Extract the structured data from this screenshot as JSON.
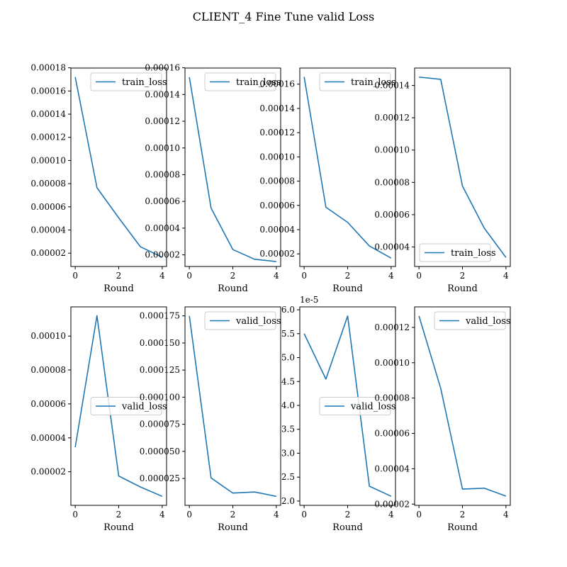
{
  "figure": {
    "title": "CLIENT_4 Fine Tune valid Loss",
    "line_color": "#1f77b4"
  },
  "chart_data": [
    {
      "type": "line",
      "title": "",
      "xlabel": "Round",
      "ylabel": "",
      "x": [
        0,
        1,
        2,
        3,
        4
      ],
      "series": [
        {
          "name": "train_loss",
          "values": [
            0.000172,
            7.65e-05,
            5.05e-05,
            2.55e-05,
            1.65e-05
          ]
        }
      ],
      "xlim": [
        -0.2,
        4.2
      ],
      "ylim": [
        8.5e-06,
        0.0001798
      ],
      "yticks": [
        2e-05,
        4e-05,
        6e-05,
        8e-05,
        0.0001,
        0.00012,
        0.00014,
        0.00016,
        0.00018
      ],
      "ytick_labels": [
        "0.00002",
        "0.00004",
        "0.00006",
        "0.00008",
        "0.00010",
        "0.00012",
        "0.00014",
        "0.00016",
        "0.00018"
      ],
      "xticks": [
        0,
        2,
        4
      ],
      "xtick_labels": [
        "0",
        "2",
        "4"
      ],
      "offset_label": "",
      "legend_loc": "upper right",
      "grid": false
    },
    {
      "type": "line",
      "title": "",
      "xlabel": "Round",
      "ylabel": "",
      "x": [
        0,
        1,
        2,
        3,
        4
      ],
      "series": [
        {
          "name": "train_loss",
          "values": [
            0.000153,
            5.5e-05,
            2.4e-05,
            1.67e-05,
            1.5e-05
          ]
        }
      ],
      "xlim": [
        -0.2,
        4.2
      ],
      "ylim": [
        1.13e-05,
        0.0001598
      ],
      "yticks": [
        2e-05,
        4e-05,
        6e-05,
        8e-05,
        0.0001,
        0.00012,
        0.00014,
        0.00016
      ],
      "ytick_labels": [
        "0.00002",
        "0.00004",
        "0.00006",
        "0.00008",
        "0.00010",
        "0.00012",
        "0.00014",
        "0.00016"
      ],
      "xticks": [
        0,
        2,
        4
      ],
      "xtick_labels": [
        "0",
        "2",
        "4"
      ],
      "offset_label": "",
      "legend_loc": "upper right",
      "grid": false
    },
    {
      "type": "line",
      "title": "",
      "xlabel": "Round",
      "ylabel": "",
      "x": [
        0,
        1,
        2,
        3,
        4
      ],
      "series": [
        {
          "name": "train_loss",
          "values": [
            0.000166,
            5.85e-05,
            4.6e-05,
            2.65e-05,
            1.65e-05
          ]
        }
      ],
      "xlim": [
        -0.2,
        4.2
      ],
      "ylim": [
        9.6e-06,
        0.0001733
      ],
      "yticks": [
        2e-05,
        4e-05,
        6e-05,
        8e-05,
        0.0001,
        0.00012,
        0.00014,
        0.00016
      ],
      "ytick_labels": [
        "0.00002",
        "0.00004",
        "0.00006",
        "0.00008",
        "0.00010",
        "0.00012",
        "0.00014",
        "0.00016"
      ],
      "xticks": [
        0,
        2,
        4
      ],
      "xtick_labels": [
        "0",
        "2",
        "4"
      ],
      "offset_label": "",
      "legend_loc": "upper right",
      "grid": false
    },
    {
      "type": "line",
      "title": "",
      "xlabel": "Round",
      "ylabel": "",
      "x": [
        0,
        1,
        2,
        3,
        4
      ],
      "series": [
        {
          "name": "train_loss",
          "values": [
            0.0001452,
            0.0001438,
            7.77e-05,
            5.17e-05,
            3.35e-05
          ]
        }
      ],
      "xlim": [
        -0.2,
        4.2
      ],
      "ylim": [
        2.79e-05,
        0.0001508
      ],
      "yticks": [
        4e-05,
        6e-05,
        8e-05,
        0.0001,
        0.00012,
        0.00014
      ],
      "ytick_labels": [
        "0.00004",
        "0.00006",
        "0.00008",
        "0.00010",
        "0.00012",
        "0.00014"
      ],
      "xticks": [
        0,
        2,
        4
      ],
      "xtick_labels": [
        "0",
        "2",
        "4"
      ],
      "offset_label": "",
      "legend_loc": "lower left",
      "grid": false
    },
    {
      "type": "line",
      "title": "",
      "xlabel": "Round",
      "ylabel": "",
      "x": [
        0,
        1,
        2,
        3,
        4
      ],
      "series": [
        {
          "name": "valid_loss",
          "values": [
            3.45e-05,
            0.000112,
            1.75e-05,
            1.1e-05,
            5.5e-06
          ]
        }
      ],
      "xlim": [
        -0.2,
        4.2
      ],
      "ylim": [
        2e-07,
        0.0001172
      ],
      "yticks": [
        2e-05,
        4e-05,
        6e-05,
        8e-05,
        0.0001
      ],
      "ytick_labels": [
        "0.00002",
        "0.00004",
        "0.00006",
        "0.00008",
        "0.00010"
      ],
      "xticks": [
        0,
        2,
        4
      ],
      "xtick_labels": [
        "0",
        "2",
        "4"
      ],
      "offset_label": "",
      "legend_loc": "center right",
      "grid": false
    },
    {
      "type": "line",
      "title": "",
      "xlabel": "Round",
      "ylabel": "",
      "x": [
        0,
        1,
        2,
        3,
        4
      ],
      "series": [
        {
          "name": "valid_loss",
          "values": [
            0.000175,
            2.55e-05,
            1.15e-05,
            1.25e-05,
            8.5e-06
          ]
        }
      ],
      "xlim": [
        -0.2,
        4.2
      ],
      "ylim": [
        2e-07,
        0.0001833
      ],
      "yticks": [
        2.5e-05,
        5e-05,
        7.5e-05,
        0.0001,
        0.000125,
        0.00015,
        0.000175
      ],
      "ytick_labels": [
        "0.000025",
        "0.000050",
        "0.000075",
        "0.000100",
        "0.000125",
        "0.000150",
        "0.000175"
      ],
      "xticks": [
        0,
        2,
        4
      ],
      "xtick_labels": [
        "0",
        "2",
        "4"
      ],
      "offset_label": "",
      "legend_loc": "upper right",
      "grid": false
    },
    {
      "type": "line",
      "title": "",
      "xlabel": "Round",
      "ylabel": "",
      "x": [
        0,
        1,
        2,
        3,
        4
      ],
      "series": [
        {
          "name": "valid_loss",
          "values": [
            5.5e-05,
            4.55e-05,
            5.87e-05,
            2.31e-05,
            2.1e-05
          ]
        }
      ],
      "xlim": [
        -0.2,
        4.2
      ],
      "ylim": [
        1.91e-05,
        6.06e-05
      ],
      "yticks": [
        2e-05,
        2.5e-05,
        3e-05,
        3.5e-05,
        4e-05,
        4.5e-05,
        5e-05,
        5.5e-05,
        6e-05
      ],
      "ytick_labels": [
        "2.0",
        "2.5",
        "3.0",
        "3.5",
        "4.0",
        "4.5",
        "5.0",
        "5.5",
        "6.0"
      ],
      "xticks": [
        0,
        2,
        4
      ],
      "xtick_labels": [
        "0",
        "2",
        "4"
      ],
      "offset_label": "1e-5",
      "legend_loc": "center right",
      "grid": false
    },
    {
      "type": "line",
      "title": "",
      "xlabel": "Round",
      "ylabel": "",
      "x": [
        0,
        1,
        2,
        3,
        4
      ],
      "series": [
        {
          "name": "valid_loss",
          "values": [
            0.0001265,
            8.55e-05,
            2.85e-05,
            2.9e-05,
            2.45e-05
          ]
        }
      ],
      "xlim": [
        -0.2,
        4.2
      ],
      "ylim": [
        1.93e-05,
        0.0001316
      ],
      "yticks": [
        2e-05,
        4e-05,
        6e-05,
        8e-05,
        0.0001,
        0.00012
      ],
      "ytick_labels": [
        "0.00002",
        "0.00004",
        "0.00006",
        "0.00008",
        "0.00010",
        "0.00012"
      ],
      "xticks": [
        0,
        2,
        4
      ],
      "xtick_labels": [
        "0",
        "2",
        "4"
      ],
      "offset_label": "",
      "legend_loc": "upper right",
      "grid": false
    }
  ]
}
